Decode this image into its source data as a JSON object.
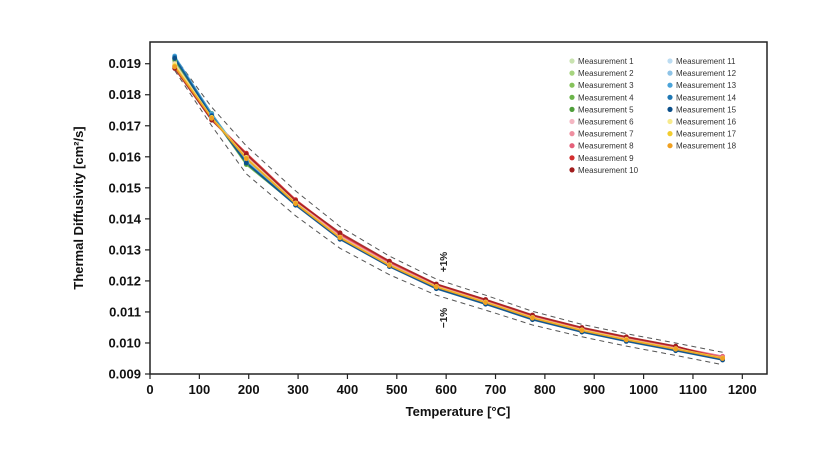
{
  "chart_data": {
    "type": "line",
    "xlabel": "Temperature [°C]",
    "ylabel": "Thermal Diffusivity [cm²/s]",
    "xlim": [
      0,
      1250
    ],
    "ylim": [
      0.009,
      0.0197
    ],
    "x_ticks": [
      "0",
      "100",
      "200",
      "300",
      "400",
      "500",
      "600",
      "700",
      "800",
      "900",
      "1000",
      "1100",
      "1200"
    ],
    "y_ticks": [
      "0.009",
      "0.010",
      "0.011",
      "0.012",
      "0.013",
      "0.014",
      "0.015",
      "0.016",
      "0.017",
      "0.018",
      "0.019"
    ],
    "legend_position": "top-right",
    "annotations": {
      "upper": "+1%",
      "lower": "−1%"
    },
    "x": [
      50,
      125,
      195,
      295,
      385,
      485,
      580,
      680,
      775,
      875,
      965,
      1065,
      1160
    ],
    "nominal": [
      0.019,
      0.0173,
      0.0159,
      0.0145,
      0.0134,
      0.0125,
      0.0118,
      0.0113,
      0.0108,
      0.0104,
      0.0101,
      0.0098,
      0.0095
    ],
    "series": [
      {
        "name": "Measurement 1",
        "color": "#c9e3b0",
        "values": [
          0.01905,
          0.01733,
          0.01595,
          0.01452,
          0.01343,
          0.01253,
          0.01181,
          0.01131,
          0.01081,
          0.01041,
          0.01011,
          0.00981,
          0.00951
        ]
      },
      {
        "name": "Measurement 2",
        "color": "#a6d47f",
        "values": [
          0.0191,
          0.01735,
          0.01592,
          0.0145,
          0.0134,
          0.01251,
          0.0118,
          0.0113,
          0.0108,
          0.0104,
          0.0101,
          0.0098,
          0.0095
        ]
      },
      {
        "name": "Measurement 3",
        "color": "#86c25b",
        "values": [
          0.01915,
          0.01738,
          0.01588,
          0.01448,
          0.01338,
          0.01249,
          0.01179,
          0.01129,
          0.01079,
          0.01039,
          0.01009,
          0.00979,
          0.00949
        ]
      },
      {
        "name": "Measurement 4",
        "color": "#6bb44a",
        "values": [
          0.01912,
          0.01732,
          0.01575,
          0.01446,
          0.01336,
          0.01248,
          0.01178,
          0.01128,
          0.01078,
          0.01038,
          0.01008,
          0.00978,
          0.00948
        ]
      },
      {
        "name": "Measurement 5",
        "color": "#4f9e3a",
        "values": [
          0.01918,
          0.0174,
          0.01578,
          0.01447,
          0.01337,
          0.0125,
          0.0118,
          0.0113,
          0.0108,
          0.0104,
          0.0101,
          0.0098,
          0.0095
        ]
      },
      {
        "name": "Measurement 6",
        "color": "#f4b6c2",
        "values": [
          0.019,
          0.01728,
          0.016,
          0.01455,
          0.01345,
          0.01255,
          0.01183,
          0.01133,
          0.01083,
          0.01043,
          0.01013,
          0.00983,
          0.00953
        ]
      },
      {
        "name": "Measurement 7",
        "color": "#ef8fa0",
        "values": [
          0.01895,
          0.01725,
          0.01605,
          0.01458,
          0.01347,
          0.01257,
          0.01185,
          0.01135,
          0.01085,
          0.01045,
          0.01015,
          0.00985,
          0.00955
        ]
      },
      {
        "name": "Measurement 8",
        "color": "#e5607a",
        "values": [
          0.01892,
          0.01722,
          0.0161,
          0.0146,
          0.0135,
          0.0126,
          0.01187,
          0.01137,
          0.01087,
          0.01047,
          0.01017,
          0.00987,
          0.00957
        ]
      },
      {
        "name": "Measurement 9",
        "color": "#d32f2f",
        "values": [
          0.01888,
          0.0172,
          0.01612,
          0.01462,
          0.01352,
          0.01262,
          0.01189,
          0.01139,
          0.01089,
          0.01049,
          0.01019,
          0.00989,
          0.00952
        ]
      },
      {
        "name": "Measurement 10",
        "color": "#a11d1d",
        "values": [
          0.01885,
          0.01718,
          0.01608,
          0.01459,
          0.01355,
          0.01264,
          0.0119,
          0.0114,
          0.0109,
          0.0105,
          0.0102,
          0.0099,
          0.00946
        ]
      },
      {
        "name": "Measurement 11",
        "color": "#bcdcf2",
        "values": [
          0.0192,
          0.01736,
          0.0159,
          0.01449,
          0.01339,
          0.0125,
          0.01179,
          0.01129,
          0.01079,
          0.01039,
          0.01009,
          0.00979,
          0.00949
        ]
      },
      {
        "name": "Measurement 12",
        "color": "#8ec3e6",
        "values": [
          0.01922,
          0.01737,
          0.01586,
          0.01447,
          0.01337,
          0.01249,
          0.01178,
          0.01128,
          0.01078,
          0.01038,
          0.01008,
          0.00978,
          0.00948
        ]
      },
      {
        "name": "Measurement 13",
        "color": "#4aa3d9",
        "values": [
          0.01925,
          0.01739,
          0.01584,
          0.01446,
          0.01336,
          0.01248,
          0.01177,
          0.01127,
          0.01077,
          0.01037,
          0.01007,
          0.00977,
          0.00947
        ]
      },
      {
        "name": "Measurement 14",
        "color": "#1f78b4",
        "values": [
          0.01921,
          0.01734,
          0.01582,
          0.01445,
          0.01335,
          0.01247,
          0.01176,
          0.01126,
          0.01076,
          0.01036,
          0.01006,
          0.00976,
          0.00946
        ]
      },
      {
        "name": "Measurement 15",
        "color": "#0b4f8a",
        "values": [
          0.01917,
          0.01731,
          0.0158,
          0.01444,
          0.01334,
          0.01246,
          0.01175,
          0.01125,
          0.01075,
          0.01035,
          0.01005,
          0.00975,
          0.00945
        ]
      },
      {
        "name": "Measurement 16",
        "color": "#f7ea8c",
        "values": [
          0.01898,
          0.01727,
          0.01598,
          0.01451,
          0.01341,
          0.01252,
          0.01182,
          0.01132,
          0.01082,
          0.01042,
          0.01012,
          0.00982,
          0.00952
        ]
      },
      {
        "name": "Measurement 17",
        "color": "#f2cc2e",
        "values": [
          0.01893,
          0.01726,
          0.01596,
          0.0145,
          0.0134,
          0.01251,
          0.01181,
          0.01131,
          0.01081,
          0.01041,
          0.01011,
          0.00981,
          0.00951
        ]
      },
      {
        "name": "Measurement 18",
        "color": "#f0a020",
        "values": [
          0.0189,
          0.01724,
          0.01594,
          0.01449,
          0.01339,
          0.0125,
          0.0118,
          0.0113,
          0.0108,
          0.0104,
          0.0101,
          0.0098,
          0.0095
        ]
      }
    ]
  }
}
